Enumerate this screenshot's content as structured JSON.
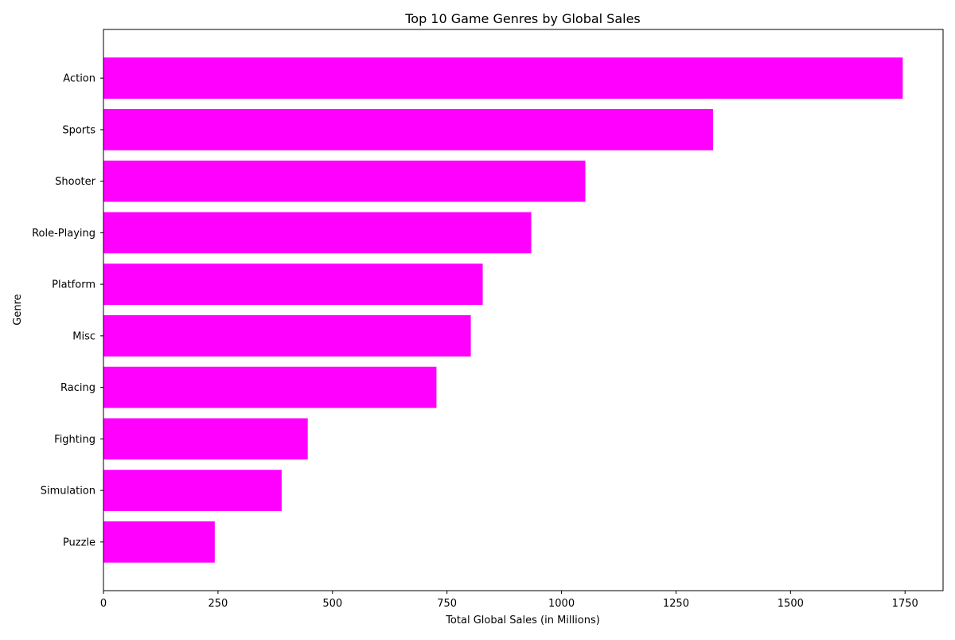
{
  "colors": {
    "bar": "#ff00ff",
    "axis": "#000000",
    "background": "#ffffff"
  },
  "chart_data": {
    "type": "bar",
    "orientation": "horizontal",
    "title": "Top 10 Game Genres by Global Sales",
    "xlabel": "Total Global Sales (in Millions)",
    "ylabel": "Genre",
    "categories": [
      "Action",
      "Sports",
      "Shooter",
      "Role-Playing",
      "Platform",
      "Misc",
      "Racing",
      "Fighting",
      "Simulation",
      "Puzzle"
    ],
    "values": [
      1745,
      1331,
      1052,
      934,
      828,
      802,
      727,
      446,
      389,
      243
    ],
    "xlim": [
      0,
      1833
    ],
    "xticks": [
      0,
      250,
      500,
      750,
      1000,
      1250,
      1500,
      1750
    ],
    "grid": false,
    "legend": "none"
  }
}
